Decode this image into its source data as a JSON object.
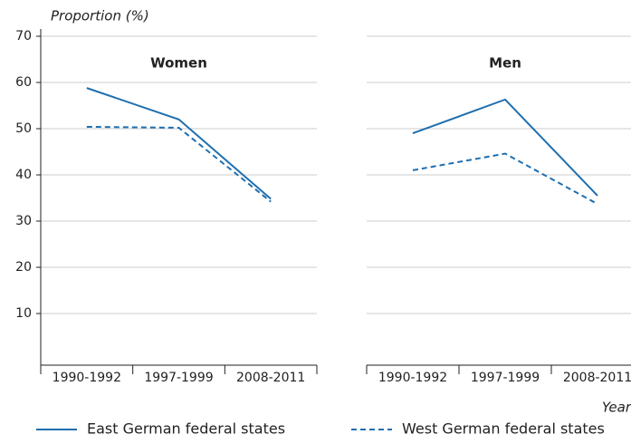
{
  "chart_data": [
    {
      "type": "line",
      "title": "Women",
      "ylabel": "Proportion (%)",
      "categories": [
        "1990-1992",
        "1997-1999",
        "2008-2011"
      ],
      "series": [
        {
          "name": "East German federal states",
          "color": "#1f6fb0",
          "dash": "solid",
          "values": [
            58.8,
            52,
            34.8
          ]
        },
        {
          "name": "West German federal states",
          "color": "#1f6fb0",
          "dash": "dashed",
          "values": [
            50.4,
            50.2,
            34.2
          ]
        }
      ],
      "ylim": [
        0,
        70
      ],
      "yticks": [
        10,
        20,
        30,
        40,
        50,
        60,
        70
      ],
      "grid": true
    },
    {
      "type": "line",
      "title": "Men",
      "xlabel": "Year",
      "categories": [
        "1990-1992",
        "1997-1999",
        "2008-2011"
      ],
      "series": [
        {
          "color": "#1f6fb0",
          "dash": "solid",
          "values": [
            49,
            56.3,
            35.5
          ]
        },
        {
          "color": "#1f6fb0",
          "dash": "dashed",
          "values": [
            41,
            44.6,
            33.7
          ]
        }
      ],
      "ylim": [
        0,
        70
      ],
      "yticks": [
        10,
        20,
        30,
        40,
        50,
        60,
        70
      ],
      "grid": true
    }
  ]
}
